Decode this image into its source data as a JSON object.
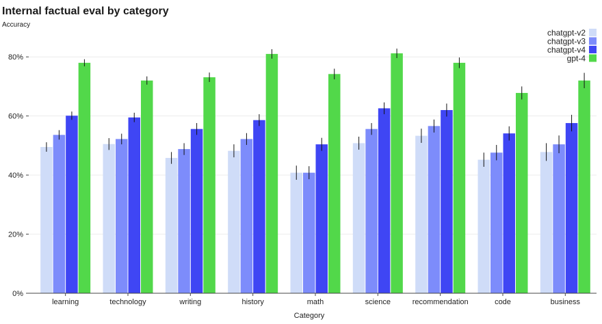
{
  "chart_data": {
    "type": "bar",
    "title": "Internal factual eval by category",
    "ylabel": "Accuracy",
    "xlabel": "Category",
    "ylim": [
      0,
      0.9
    ],
    "yticks": [
      0,
      0.2,
      0.4,
      0.6,
      0.8
    ],
    "ytick_labels": [
      "0%",
      "20%",
      "40%",
      "60%",
      "80%"
    ],
    "grid": true,
    "legend_position": "top-right",
    "categories": [
      "learning",
      "technology",
      "writing",
      "history",
      "math",
      "science",
      "recommendation",
      "code",
      "business"
    ],
    "series": [
      {
        "name": "chatgpt-v2",
        "color": "#cfdcf8",
        "values": [
          0.495,
          0.505,
          0.458,
          0.482,
          0.408,
          0.508,
          0.533,
          0.452,
          0.478
        ],
        "errors": [
          0.016,
          0.02,
          0.02,
          0.022,
          0.024,
          0.022,
          0.024,
          0.024,
          0.03
        ]
      },
      {
        "name": "chatgpt-v3",
        "color": "#7d8cfb",
        "values": [
          0.536,
          0.522,
          0.488,
          0.522,
          0.408,
          0.556,
          0.566,
          0.476,
          0.504
        ],
        "errors": [
          0.016,
          0.018,
          0.02,
          0.02,
          0.022,
          0.02,
          0.022,
          0.026,
          0.03
        ]
      },
      {
        "name": "chatgpt-v4",
        "color": "#3f46f4",
        "values": [
          0.601,
          0.595,
          0.556,
          0.586,
          0.504,
          0.626,
          0.62,
          0.541,
          0.576
        ],
        "errors": [
          0.014,
          0.016,
          0.02,
          0.02,
          0.022,
          0.02,
          0.022,
          0.024,
          0.028
        ]
      },
      {
        "name": "gpt-4",
        "color": "#52d84a",
        "values": [
          0.78,
          0.72,
          0.731,
          0.81,
          0.742,
          0.812,
          0.78,
          0.678,
          0.72
        ],
        "errors": [
          0.012,
          0.014,
          0.016,
          0.016,
          0.018,
          0.016,
          0.018,
          0.022,
          0.026
        ]
      }
    ]
  }
}
